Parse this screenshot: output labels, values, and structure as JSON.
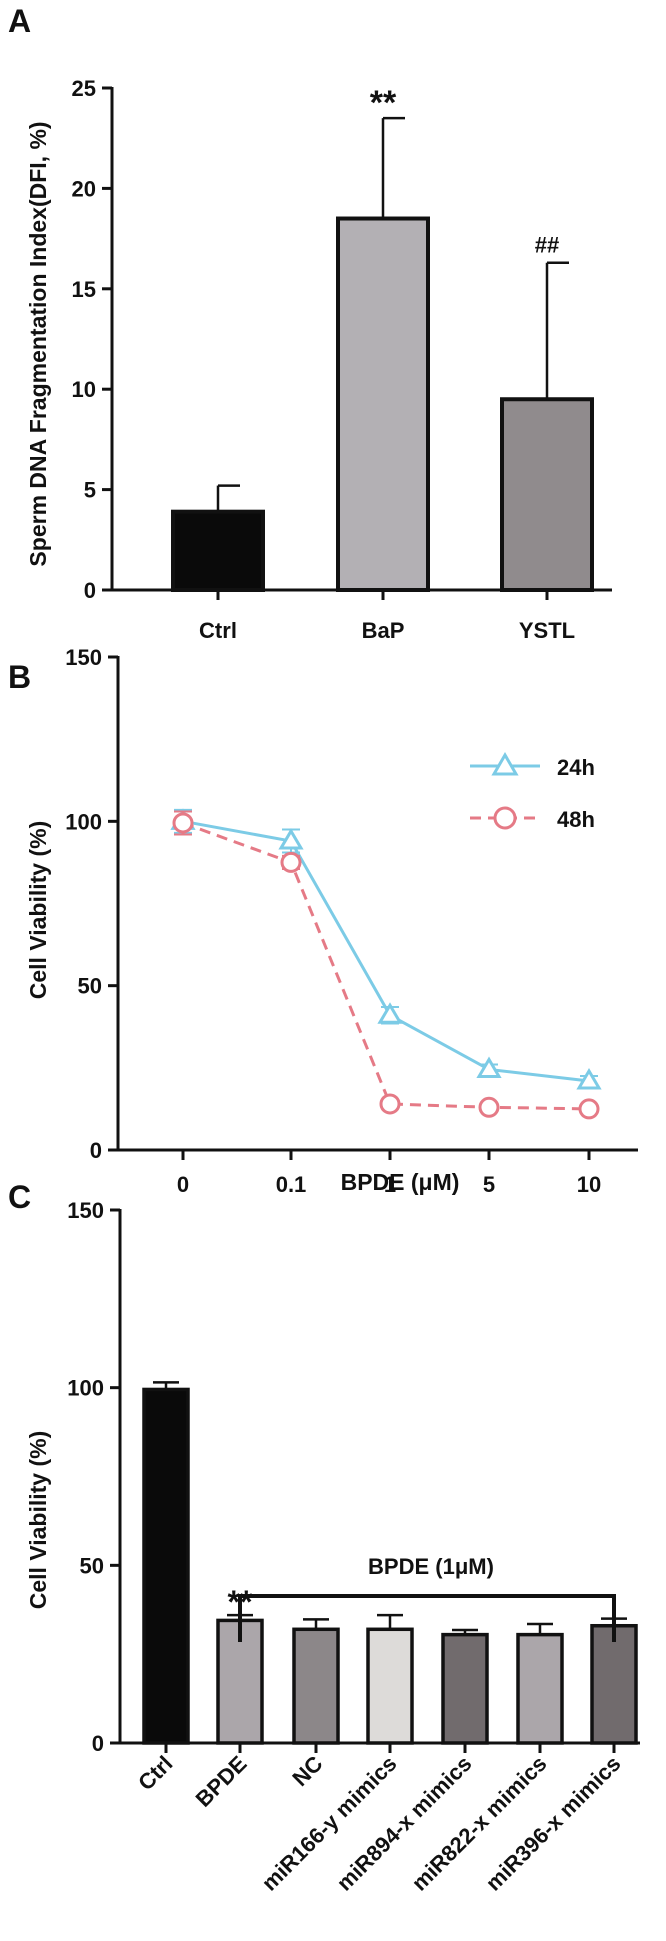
{
  "panels": {
    "A": {
      "label": "A"
    },
    "B": {
      "label": "B"
    },
    "C": {
      "label": "C"
    }
  },
  "chart_data": [
    {
      "panel": "A",
      "type": "bar",
      "title": "",
      "xlabel": "",
      "ylabel": "Sperm DNA Fragmentation Index(DFI, %)",
      "ylim": [
        0,
        25
      ],
      "yticks": [
        0,
        5,
        10,
        15,
        20,
        25
      ],
      "categories": [
        "Ctrl",
        "BaP",
        "YSTL"
      ],
      "values": [
        3.9,
        18.5,
        9.5
      ],
      "errors": [
        1.3,
        5.0,
        6.8
      ],
      "colors": [
        "#0a0a0a",
        "#b3b0b4",
        "#908b8d"
      ],
      "annotations": [
        "",
        "**",
        "##"
      ]
    },
    {
      "panel": "B",
      "type": "line",
      "title": "",
      "xlabel": "BPDE (μM)",
      "ylabel": "Cell Viability (%)",
      "ylim": [
        0,
        150
      ],
      "yticks": [
        0,
        50,
        100,
        150
      ],
      "categories": [
        "0",
        "0.1",
        "1",
        "5",
        "10"
      ],
      "legend_position": "top-right",
      "series": [
        {
          "name": "24h",
          "marker": "triangle",
          "dashed": false,
          "color": "#7ccbe6",
          "values": [
            100,
            94,
            41,
            24.5,
            21
          ],
          "errors": [
            3.5,
            3.5,
            2.5,
            1.5,
            1.5
          ]
        },
        {
          "name": "48h",
          "marker": "circle",
          "dashed": true,
          "color": "#e57a86",
          "values": [
            99.5,
            87.5,
            14,
            13,
            12.5
          ],
          "errors": [
            3.5,
            2.0,
            1.0,
            1.0,
            1.0
          ]
        }
      ]
    },
    {
      "panel": "C",
      "type": "bar",
      "title": "",
      "xlabel": "",
      "ylabel": "Cell Viability (%)",
      "ylim": [
        0,
        150
      ],
      "yticks": [
        0,
        50,
        100,
        150
      ],
      "categories": [
        "Ctrl",
        "BPDE",
        "NC",
        "miR166-y mimics",
        "miR894-x mimics",
        "miR822-x mimics",
        "miR396-x mimics"
      ],
      "values": [
        99.5,
        34.5,
        32,
        32,
        30.5,
        30.5,
        33
      ],
      "errors": [
        2.0,
        1.5,
        2.8,
        4.0,
        1.3,
        3.0,
        2.0
      ],
      "colors": [
        "#0a0a0a",
        "#aba6aa",
        "#8c8789",
        "#dddbd9",
        "#716b6d",
        "#aba6aa",
        "#716b6d"
      ],
      "annotations": [
        "",
        "**",
        "",
        "",
        "",
        "",
        ""
      ],
      "bracket_label": "BPDE (1μM)"
    }
  ]
}
